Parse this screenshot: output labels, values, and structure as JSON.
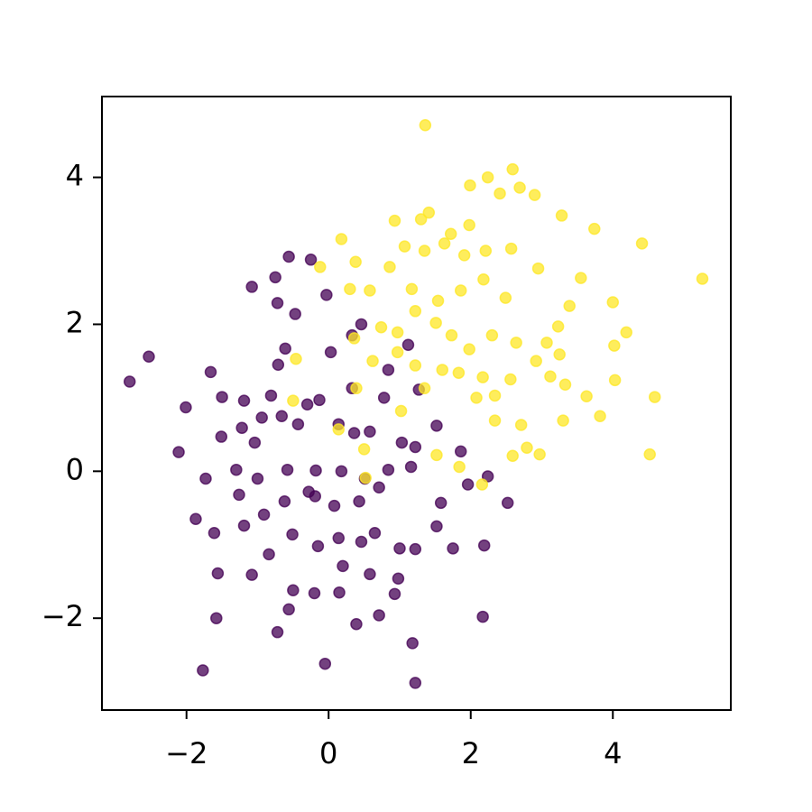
{
  "chart_data": {
    "type": "scatter",
    "xlim": [
      -3.19,
      5.66
    ],
    "ylim": [
      -3.25,
      5.1
    ],
    "xticks": [
      {
        "value": -2,
        "label": "−2"
      },
      0,
      2,
      4
    ],
    "yticks": [
      {
        "value": -2,
        "label": "−2"
      },
      0,
      2,
      4
    ],
    "grid": false,
    "series": [
      {
        "color": "#440154",
        "x": [
          -2.8,
          -2.53,
          -2.01,
          -2.11,
          -1.87,
          -1.77,
          -1.58,
          -1.56,
          -1.66,
          -1.5,
          -1.08,
          -0.75,
          -0.56,
          -0.25,
          -0.72,
          -0.47,
          -0.03,
          -0.61,
          -0.71,
          -1.19,
          -0.81,
          -1.51,
          -1.22,
          -0.94,
          -0.66,
          -0.3,
          -0.13,
          0.03,
          0.46,
          0.33,
          0.33,
          0.78,
          0.84,
          1.12,
          1.27,
          1.52,
          1.86,
          1.96,
          2.24,
          2.52,
          1.58,
          1.52,
          1.75,
          2.19,
          2.17,
          1.22,
          1.18,
          1.22,
          1.0,
          0.98,
          0.93,
          0.71,
          0.39,
          -0.05,
          0.15,
          -0.2,
          -0.5,
          -0.56,
          -0.72,
          -1.08,
          -0.84,
          -1.19,
          -1.61,
          -1.73,
          -1.3,
          -1.0,
          -0.58,
          -0.18,
          0.18,
          0.51,
          0.84,
          1.16,
          0.71,
          0.43,
          0.08,
          -0.28,
          -0.62,
          -0.91,
          -1.26,
          -0.51,
          -0.15,
          0.14,
          0.46,
          0.65,
          1.03,
          1.22,
          0.14,
          0.36,
          0.58,
          -1.04,
          -0.43,
          -0.19,
          0.2,
          0.58
        ],
        "y": [
          1.22,
          1.56,
          0.87,
          0.26,
          -0.65,
          -2.71,
          -2.0,
          -1.39,
          1.35,
          1.01,
          2.51,
          2.64,
          2.92,
          2.88,
          2.29,
          2.14,
          2.4,
          1.67,
          1.45,
          0.96,
          1.03,
          0.47,
          0.59,
          0.73,
          0.75,
          0.91,
          0.97,
          1.62,
          2.0,
          1.85,
          1.13,
          1.0,
          1.38,
          1.72,
          1.11,
          0.62,
          0.27,
          -0.18,
          -0.07,
          -0.43,
          -0.43,
          -0.75,
          -1.05,
          -1.01,
          -1.98,
          -1.06,
          -2.34,
          -2.88,
          -1.05,
          -1.46,
          -1.67,
          -1.96,
          -2.08,
          -2.62,
          -1.65,
          -1.66,
          -1.62,
          -1.88,
          -2.19,
          -1.41,
          -1.13,
          -0.74,
          -0.84,
          -0.1,
          0.02,
          -0.1,
          0.02,
          0.01,
          0.0,
          -0.1,
          0.02,
          0.06,
          -0.22,
          -0.41,
          -0.47,
          -0.28,
          -0.41,
          -0.59,
          -0.32,
          -0.86,
          -1.02,
          -0.91,
          -0.96,
          -0.84,
          0.39,
          0.33,
          0.64,
          0.52,
          0.54,
          0.39,
          0.64,
          -0.34,
          -1.29,
          -1.4
        ]
      },
      {
        "color": "#fde725",
        "x": [
          1.36,
          2.59,
          2.24,
          1.99,
          2.41,
          2.69,
          2.9,
          3.28,
          3.74,
          4.41,
          5.26,
          3.55,
          4.0,
          4.19,
          4.02,
          4.03,
          4.59,
          3.82,
          4.52,
          3.63,
          3.3,
          2.97,
          2.59,
          2.79,
          2.71,
          2.34,
          2.08,
          2.17,
          1.83,
          1.52,
          1.84,
          2.16,
          1.98,
          1.72,
          1.41,
          1.3,
          0.93,
          1.07,
          1.35,
          1.63,
          1.91,
          2.21,
          2.57,
          2.95,
          3.39,
          3.23,
          3.07,
          3.25,
          3.12,
          3.33,
          2.92,
          2.64,
          2.3,
          1.98,
          1.73,
          1.51,
          1.22,
          0.97,
          0.74,
          0.36,
          0.18,
          -0.12,
          0.38,
          0.3,
          0.58,
          0.86,
          1.17,
          1.54,
          1.86,
          2.18,
          2.49,
          -0.46,
          -0.5,
          0.14,
          0.5,
          0.52,
          1.02,
          1.35,
          1.6,
          0.97,
          0.62,
          0.39,
          1.22,
          2.34,
          2.56
        ],
        "y": [
          4.71,
          4.11,
          4.0,
          3.89,
          3.78,
          3.86,
          3.76,
          3.48,
          3.3,
          3.1,
          2.62,
          2.63,
          2.3,
          1.89,
          1.71,
          1.24,
          1.01,
          0.75,
          0.23,
          1.02,
          0.69,
          0.23,
          0.21,
          0.32,
          0.63,
          0.69,
          1.0,
          1.28,
          1.34,
          0.22,
          0.06,
          -0.18,
          3.35,
          3.23,
          3.52,
          3.43,
          3.41,
          3.06,
          3.0,
          3.1,
          2.94,
          3.0,
          3.03,
          2.76,
          2.25,
          1.97,
          1.75,
          1.59,
          1.29,
          1.18,
          1.5,
          1.75,
          1.85,
          1.66,
          1.85,
          2.02,
          2.18,
          1.89,
          1.96,
          1.81,
          3.16,
          2.78,
          2.85,
          2.48,
          2.46,
          2.78,
          2.48,
          2.32,
          2.46,
          2.61,
          2.36,
          1.53,
          0.96,
          0.57,
          0.3,
          -0.09,
          0.82,
          1.13,
          1.38,
          1.62,
          1.5,
          1.13,
          1.44,
          1.03,
          1.25
        ]
      }
    ]
  }
}
